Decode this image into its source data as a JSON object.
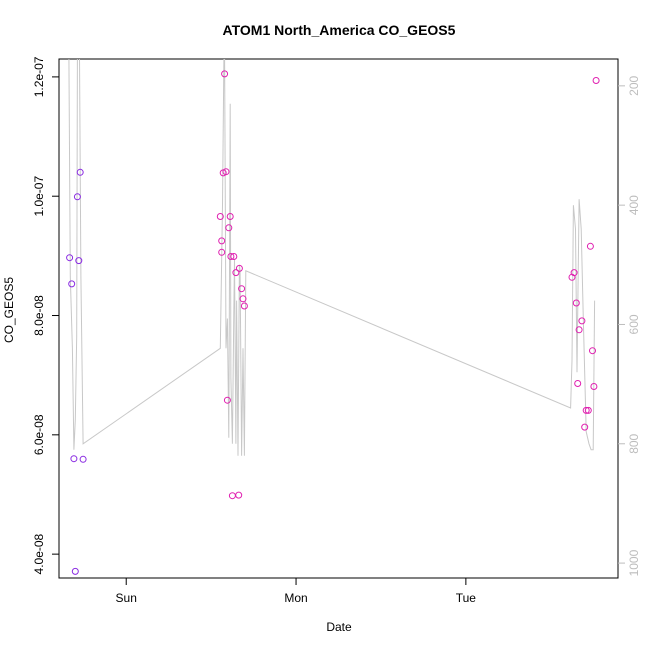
{
  "chart_data": {
    "type": "scatter",
    "title": "ATOM1 North_America CO_GEOS5",
    "xlabel": "Date",
    "ylabel": "CO_GEOS5",
    "x_ticks": [
      {
        "label": "Sun",
        "value": 0
      },
      {
        "label": "Mon",
        "value": 24
      },
      {
        "label": "Tue",
        "value": 48
      }
    ],
    "xlim": [
      -9.5,
      69.5
    ],
    "ylim": [
      3.6e-08,
      1.23e-07
    ],
    "y_ticks": [
      {
        "label": "4.0e-08",
        "value": 4e-08
      },
      {
        "label": "6.0e-08",
        "value": 6e-08
      },
      {
        "label": "8.0e-08",
        "value": 8e-08
      },
      {
        "label": "1.0e-07",
        "value": 1e-07
      },
      {
        "label": "1.2e-07",
        "value": 1.2e-07
      }
    ],
    "y2_ticks": [
      {
        "label": "200",
        "value": 200
      },
      {
        "label": "400",
        "value": 400
      },
      {
        "label": "600",
        "value": 600
      },
      {
        "label": "800",
        "value": 800
      },
      {
        "label": "1000",
        "value": 1000
      }
    ],
    "y2lim": [
      155,
      1025
    ],
    "y2_reversed": true,
    "colors": {
      "points_early": "#8a2be2",
      "points_late": "#e020b0",
      "pressure_line": "#c8c8c8"
    },
    "points": [
      {
        "x": -8.0,
        "y": 8.97e-08
      },
      {
        "x": -7.7,
        "y": 8.53e-08
      },
      {
        "x": -7.4,
        "y": 5.6e-08
      },
      {
        "x": -7.2,
        "y": 3.71e-08
      },
      {
        "x": -6.9,
        "y": 9.99e-08
      },
      {
        "x": -6.7,
        "y": 8.92e-08
      },
      {
        "x": -6.5,
        "y": 1.04e-07
      },
      {
        "x": -6.1,
        "y": 5.59e-08
      },
      {
        "x": 13.3,
        "y": 9.66e-08
      },
      {
        "x": 13.5,
        "y": 9.25e-08
      },
      {
        "x": 13.5,
        "y": 9.06e-08
      },
      {
        "x": 13.7,
        "y": 1.039e-07
      },
      {
        "x": 13.9,
        "y": 1.205e-07
      },
      {
        "x": 14.1,
        "y": 1.041e-07
      },
      {
        "x": 14.3,
        "y": 6.58e-08
      },
      {
        "x": 14.5,
        "y": 9.47e-08
      },
      {
        "x": 14.7,
        "y": 9.66e-08
      },
      {
        "x": 14.8,
        "y": 8.99e-08
      },
      {
        "x": 15.0,
        "y": 4.98e-08
      },
      {
        "x": 15.2,
        "y": 8.99e-08
      },
      {
        "x": 15.5,
        "y": 8.72e-08
      },
      {
        "x": 15.9,
        "y": 4.99e-08
      },
      {
        "x": 16.0,
        "y": 8.79e-08
      },
      {
        "x": 16.3,
        "y": 8.45e-08
      },
      {
        "x": 16.5,
        "y": 8.28e-08
      },
      {
        "x": 16.7,
        "y": 8.16e-08
      },
      {
        "x": 63.0,
        "y": 8.64e-08
      },
      {
        "x": 63.3,
        "y": 8.72e-08
      },
      {
        "x": 63.6,
        "y": 8.21e-08
      },
      {
        "x": 63.8,
        "y": 6.86e-08
      },
      {
        "x": 64.0,
        "y": 7.76e-08
      },
      {
        "x": 64.4,
        "y": 7.91e-08
      },
      {
        "x": 64.8,
        "y": 6.13e-08
      },
      {
        "x": 65.0,
        "y": 6.41e-08
      },
      {
        "x": 65.3,
        "y": 6.41e-08
      },
      {
        "x": 65.6,
        "y": 9.16e-08
      },
      {
        "x": 65.9,
        "y": 7.41e-08
      },
      {
        "x": 66.1,
        "y": 6.81e-08
      },
      {
        "x": 66.4,
        "y": 1.194e-07
      }
    ],
    "pressure_series": {
      "x": [
        -8.1,
        -7.9,
        -7.6,
        -7.4,
        -7.2,
        -7.0,
        -6.9,
        -6.6,
        -6.4,
        -6.1,
        13.3,
        13.6,
        13.8,
        13.9,
        14.1,
        14.3,
        14.5,
        14.7,
        14.8,
        15.0,
        15.2,
        15.3,
        15.5,
        15.6,
        15.8,
        16.0,
        16.1,
        16.3,
        16.5,
        16.7,
        16.9,
        62.8,
        63.0,
        63.2,
        63.5,
        63.7,
        64.0,
        64.3,
        64.6,
        65.0,
        65.4,
        65.7,
        66.0,
        66.2
      ],
      "y2": [
        150,
        520,
        640,
        810,
        760,
        620,
        150,
        150,
        520,
        800,
        640,
        400,
        150,
        150,
        640,
        590,
        790,
        230,
        690,
        800,
        580,
        490,
        800,
        560,
        820,
        500,
        510,
        820,
        640,
        820,
        510,
        740,
        660,
        400,
        440,
        680,
        390,
        440,
        590,
        780,
        800,
        810,
        810,
        560
      ]
    }
  }
}
